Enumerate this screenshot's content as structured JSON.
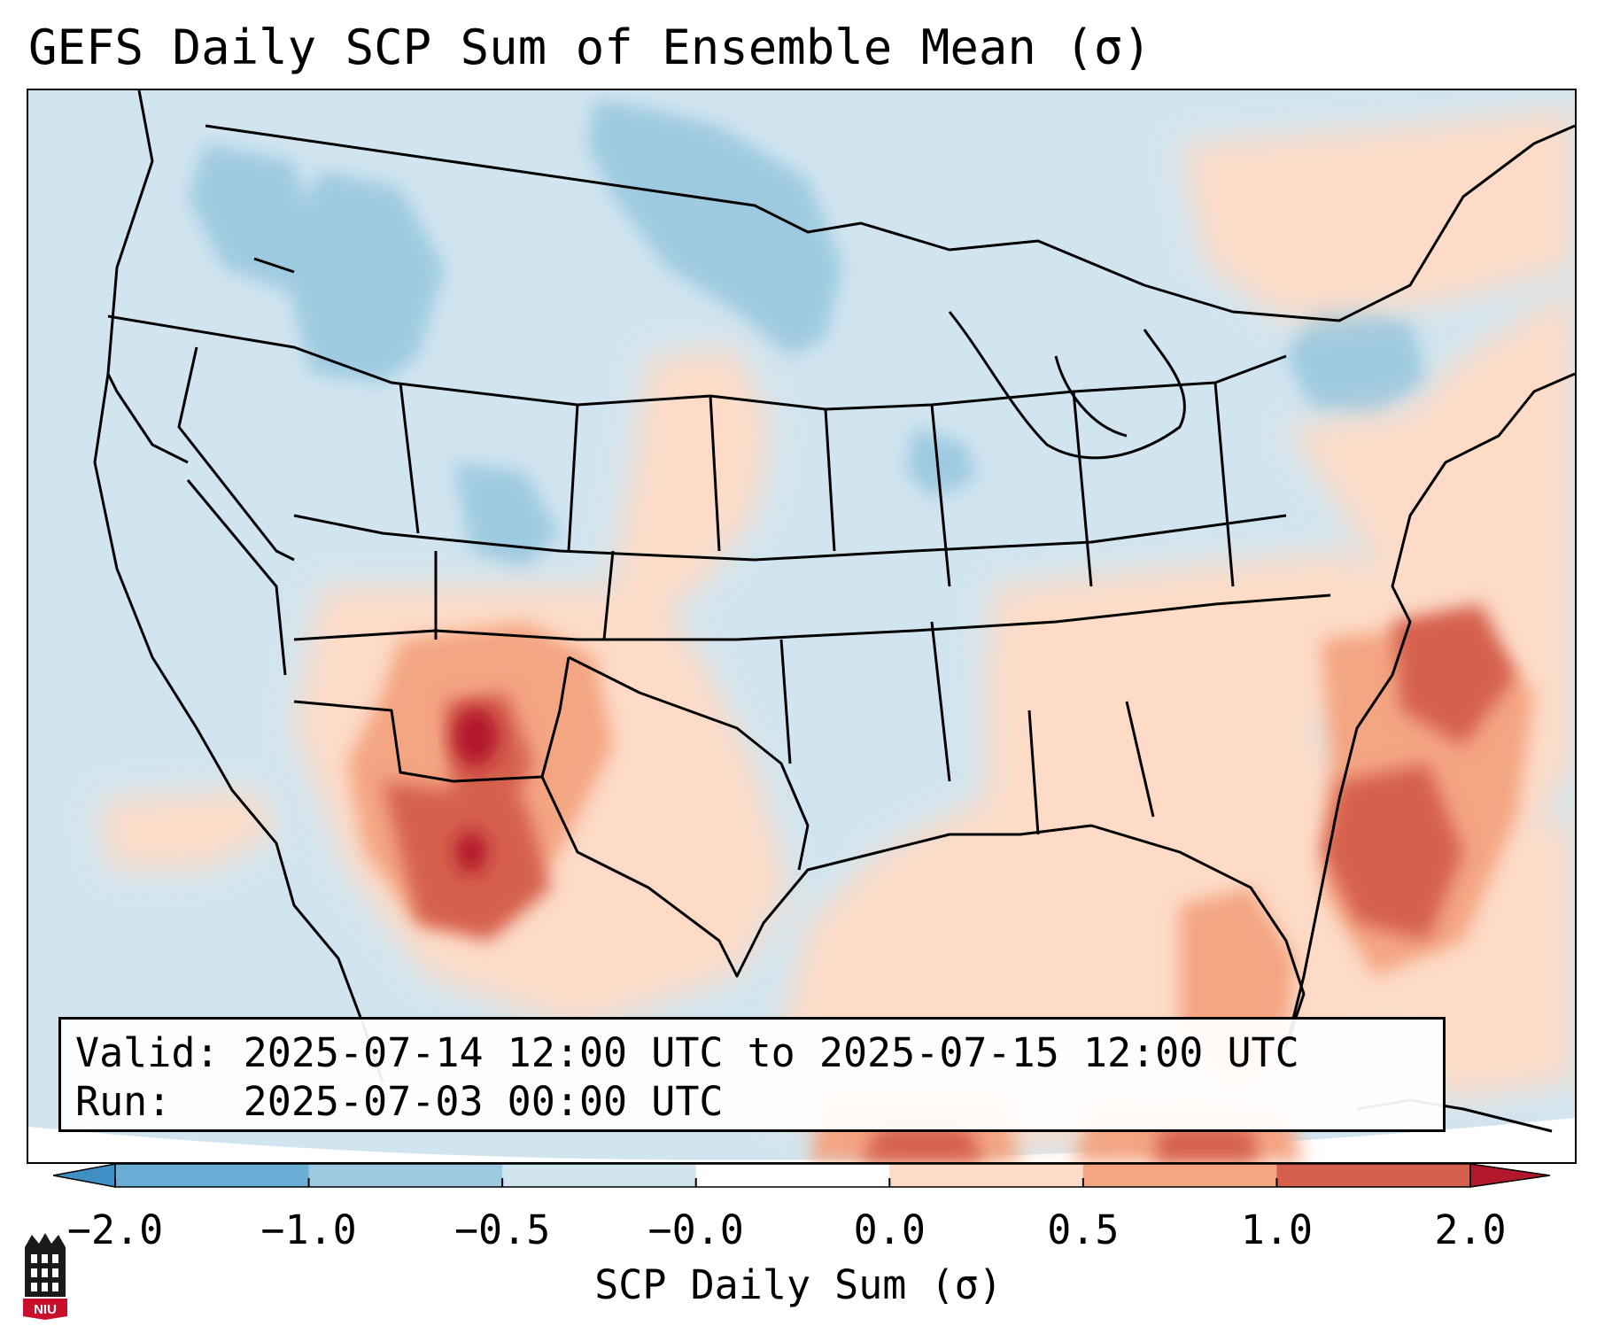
{
  "title": "GEFS Daily SCP Sum of Ensemble Mean (σ)",
  "info": {
    "valid_label": "Valid:",
    "valid_value": "2025-07-14 12:00 UTC to 2025-07-15 12:00 UTC",
    "run_label": "Run:",
    "run_value": "2025-07-03 00:00 UTC"
  },
  "colorbar": {
    "label": "SCP Daily Sum (σ)",
    "ticks": [
      "−2.0",
      "−1.0",
      "−0.5",
      "−0.0",
      "0.0",
      "0.5",
      "1.0",
      "2.0"
    ],
    "bin_colors": [
      "#3f8fc5",
      "#6aaed6",
      "#9ecae1",
      "#d1e5f0",
      "#ffffff",
      "#fddbc7",
      "#f4a582",
      "#d6604d",
      "#b2182b"
    ]
  },
  "logo": {
    "text": "NIU",
    "colors": {
      "red": "#c8102e",
      "black": "#1a1a1a"
    }
  },
  "map": {
    "extent": "CONUS",
    "background_color": "#d1e5f0",
    "anomaly_regions": [
      {
        "name": "central-northern-plains-positive",
        "level": 0.25
      },
      {
        "name": "southwest-positive",
        "level": 0.75
      },
      {
        "name": "new-mexico-max",
        "level": 1.5
      },
      {
        "name": "sonora-positive",
        "level": 1.0
      },
      {
        "name": "tennessee-valley-positive",
        "level": 0.25
      },
      {
        "name": "mid-atlantic-coast-positive",
        "level": 0.25
      },
      {
        "name": "gulf-of-mexico-positive",
        "level": 0.25
      },
      {
        "name": "florida-positive",
        "level": 0.75
      },
      {
        "name": "western-atlantic-positive",
        "level": 1.0
      },
      {
        "name": "atlantic-max-off-carolinas",
        "level": 1.2
      },
      {
        "name": "northeast-canada-positive",
        "level": 0.25
      },
      {
        "name": "northern-rockies-negative",
        "level": -0.75
      },
      {
        "name": "northern-plains-negative",
        "level": -0.75
      },
      {
        "name": "great-lakes-negative",
        "level": -0.75
      }
    ]
  }
}
